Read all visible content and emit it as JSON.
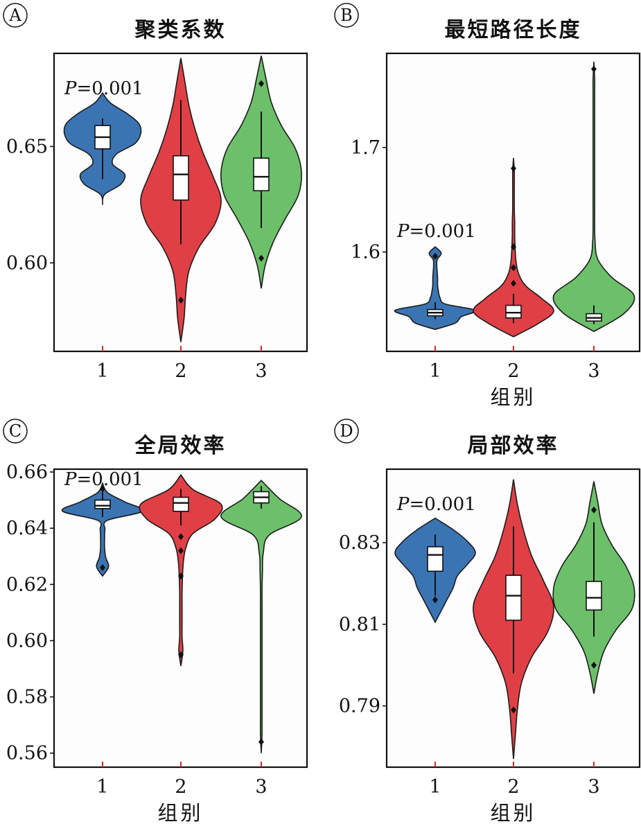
{
  "chart_data": [
    {
      "type": "violin",
      "panel_label": "A",
      "title": "聚类系数",
      "xlabel": "",
      "ylabel": "",
      "categories": [
        "1",
        "2",
        "3"
      ],
      "ylim": [
        0.562,
        0.69
      ],
      "yticks": [
        "0.60",
        "0.65"
      ],
      "annotation": {
        "text_italic": "P",
        "text_rest": "=0.001"
      },
      "groups": [
        {
          "category": "1",
          "color": "#3b74b3",
          "min": 0.625,
          "max": 0.673,
          "density": [
            0,
            0.05,
            0.45,
            0.55,
            0.25,
            0.35,
            0.8,
            0.95,
            0.9,
            0.6,
            0.2,
            0
          ],
          "q1": 0.649,
          "median": 0.654,
          "q3": 0.659,
          "whisker_low": 0.636,
          "whisker_high": 0.662,
          "outliers": []
        },
        {
          "category": "2",
          "color": "#e04045",
          "min": 0.566,
          "max": 0.688,
          "density": [
            0,
            0.08,
            0.12,
            0.2,
            0.45,
            0.85,
            1.0,
            0.8,
            0.55,
            0.35,
            0.2,
            0.1,
            0
          ],
          "q1": 0.627,
          "median": 0.638,
          "q3": 0.646,
          "whisker_low": 0.608,
          "whisker_high": 0.67,
          "outliers": [
            0.584
          ]
        },
        {
          "category": "3",
          "color": "#6cc06a",
          "min": 0.589,
          "max": 0.689,
          "density": [
            0,
            0.1,
            0.3,
            0.6,
            0.92,
            1.0,
            0.85,
            0.5,
            0.25,
            0.12,
            0
          ],
          "q1": 0.631,
          "median": 0.637,
          "q3": 0.645,
          "whisker_low": 0.615,
          "whisker_high": 0.665,
          "outliers": [
            0.602,
            0.677
          ]
        }
      ]
    },
    {
      "type": "violin",
      "panel_label": "B",
      "title": "最短路径长度",
      "xlabel": "组别",
      "ylabel": "",
      "categories": [
        "1",
        "2",
        "3"
      ],
      "ylim": [
        1.505,
        1.79
      ],
      "yticks": [
        "1.6",
        "1.7"
      ],
      "annotation": {
        "text_italic": "P",
        "text_rest": "=0.001"
      },
      "groups": [
        {
          "category": "1",
          "color": "#3b74b3",
          "min": 1.526,
          "max": 1.605,
          "density": [
            0,
            0.5,
            0.65,
            1.0,
            0.25,
            0.12,
            0.08,
            0.06,
            0.06,
            0.05,
            0.04,
            0.05,
            0.15,
            0
          ],
          "q1": 1.539,
          "median": 1.542,
          "q3": 1.545,
          "whisker_low": 1.536,
          "whisker_high": 1.552,
          "outliers": [
            1.596
          ]
        },
        {
          "category": "2",
          "color": "#e04045",
          "min": 1.519,
          "max": 1.69,
          "density": [
            0,
            0.6,
            1.0,
            0.7,
            0.3,
            0.12,
            0.06,
            0.04,
            0.03,
            0.03,
            0.02,
            0.02,
            0.02,
            0.02,
            0
          ],
          "q1": 1.537,
          "median": 1.542,
          "q3": 1.549,
          "whisker_low": 1.532,
          "whisker_high": 1.56,
          "outliers": [
            1.57,
            1.585,
            1.605,
            1.68
          ]
        },
        {
          "category": "3",
          "color": "#6cc06a",
          "min": 1.524,
          "max": 1.782,
          "density": [
            0,
            0.75,
            1.0,
            0.45,
            0.1,
            0.03,
            0.02,
            0.02,
            0.02,
            0.02,
            0.02,
            0.02,
            0.02,
            0.02,
            0.02,
            0
          ],
          "q1": 1.534,
          "median": 1.537,
          "q3": 1.541,
          "whisker_low": 1.531,
          "whisker_high": 1.549,
          "outliers": [
            1.775
          ]
        }
      ]
    },
    {
      "type": "violin",
      "panel_label": "C",
      "title": "全局效率",
      "xlabel": "组别",
      "ylabel": "",
      "categories": [
        "1",
        "2",
        "3"
      ],
      "ylim": [
        0.555,
        0.661
      ],
      "yticks": [
        "0.56",
        "0.58",
        "0.60",
        "0.62",
        "0.64",
        "0.66"
      ],
      "annotation": {
        "text_italic": "P",
        "text_rest": "=0.001"
      },
      "groups": [
        {
          "category": "1",
          "color": "#3b74b3",
          "min": 0.623,
          "max": 0.656,
          "density": [
            0,
            0.15,
            0.08,
            0.05,
            0.05,
            0.06,
            0.12,
            1.0,
            0.55,
            0.12,
            0
          ],
          "q1": 0.647,
          "median": 0.648,
          "q3": 0.65,
          "whisker_low": 0.644,
          "whisker_high": 0.653,
          "outliers": [
            0.626,
            0.654
          ]
        },
        {
          "category": "2",
          "color": "#e04045",
          "min": 0.591,
          "max": 0.659,
          "density": [
            0,
            0.05,
            0.03,
            0.03,
            0.03,
            0.03,
            0.04,
            0.06,
            0.12,
            0.3,
            0.85,
            1.0,
            0.3,
            0
          ],
          "q1": 0.646,
          "median": 0.649,
          "q3": 0.651,
          "whisker_low": 0.641,
          "whisker_high": 0.654,
          "outliers": [
            0.595,
            0.623,
            0.632,
            0.637
          ]
        },
        {
          "category": "3",
          "color": "#6cc06a",
          "min": 0.56,
          "max": 0.657,
          "density": [
            0,
            0.02,
            0.02,
            0.02,
            0.02,
            0.02,
            0.02,
            0.02,
            0.02,
            0.02,
            0.03,
            0.05,
            0.2,
            1.0,
            0.45,
            0
          ],
          "q1": 0.649,
          "median": 0.651,
          "q3": 0.653,
          "whisker_low": 0.647,
          "whisker_high": 0.655,
          "outliers": [
            0.564
          ]
        }
      ]
    },
    {
      "type": "violin",
      "panel_label": "D",
      "title": "局部效率",
      "xlabel": "组别",
      "ylabel": "",
      "categories": [
        "1",
        "2",
        "3"
      ],
      "ylim": [
        0.775,
        0.848
      ],
      "yticks": [
        "0.79",
        "0.81",
        "0.83"
      ],
      "annotation": {
        "text_italic": "P",
        "text_rest": "=0.001"
      },
      "groups": [
        {
          "category": "1",
          "color": "#3b74b3",
          "min": 0.8105,
          "max": 0.836,
          "density": [
            0,
            0.15,
            0.3,
            0.45,
            0.55,
            0.8,
            1.0,
            0.8,
            0.45,
            0
          ],
          "q1": 0.823,
          "median": 0.827,
          "q3": 0.829,
          "whisker_low": 0.817,
          "whisker_high": 0.832,
          "outliers": [
            0.816
          ]
        },
        {
          "category": "2",
          "color": "#e04045",
          "min": 0.777,
          "max": 0.8455,
          "density": [
            0,
            0.05,
            0.1,
            0.2,
            0.45,
            0.85,
            1.0,
            0.75,
            0.45,
            0.25,
            0.1,
            0
          ],
          "q1": 0.811,
          "median": 0.817,
          "q3": 0.822,
          "whisker_low": 0.798,
          "whisker_high": 0.834,
          "outliers": [
            0.789
          ]
        },
        {
          "category": "3",
          "color": "#6cc06a",
          "min": 0.793,
          "max": 0.845,
          "density": [
            0,
            0.1,
            0.25,
            0.55,
            0.95,
            1.0,
            0.8,
            0.45,
            0.2,
            0.1,
            0
          ],
          "q1": 0.8135,
          "median": 0.8165,
          "q3": 0.8205,
          "whisker_low": 0.807,
          "whisker_high": 0.835,
          "outliers": [
            0.8,
            0.838
          ]
        }
      ]
    }
  ]
}
